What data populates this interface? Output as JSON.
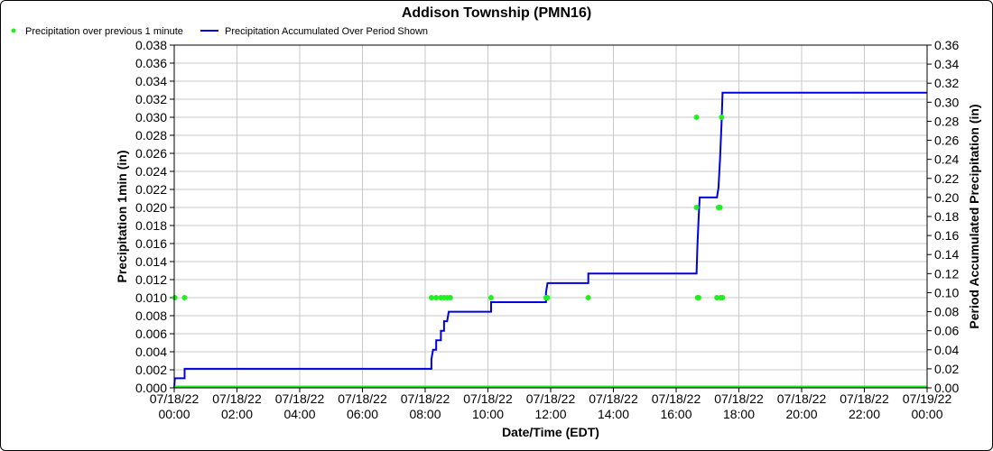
{
  "chart_data": {
    "type": "line",
    "title": "Addison Township (PMN16)",
    "xlabel": "Date/Time (EDT)",
    "ylabel": "Precipitation 1min (in)",
    "y2label": "Period Accumulated Precipitation (in)",
    "x_ticks": [
      [
        "07/18/22",
        "00:00"
      ],
      [
        "07/18/22",
        "02:00"
      ],
      [
        "07/18/22",
        "04:00"
      ],
      [
        "07/18/22",
        "06:00"
      ],
      [
        "07/18/22",
        "08:00"
      ],
      [
        "07/18/22",
        "10:00"
      ],
      [
        "07/18/22",
        "12:00"
      ],
      [
        "07/18/22",
        "14:00"
      ],
      [
        "07/18/22",
        "16:00"
      ],
      [
        "07/18/22",
        "18:00"
      ],
      [
        "07/18/22",
        "20:00"
      ],
      [
        "07/18/22",
        "22:00"
      ],
      [
        "07/19/22",
        "00:00"
      ]
    ],
    "x_range_hours": [
      0,
      24
    ],
    "y_ticks": [
      "0.000",
      "0.002",
      "0.004",
      "0.006",
      "0.008",
      "0.010",
      "0.012",
      "0.014",
      "0.016",
      "0.018",
      "0.020",
      "0.022",
      "0.024",
      "0.026",
      "0.028",
      "0.030",
      "0.032",
      "0.034",
      "0.036",
      "0.038"
    ],
    "y2_ticks": [
      "0.00",
      "0.02",
      "0.04",
      "0.06",
      "0.08",
      "0.10",
      "0.12",
      "0.14",
      "0.16",
      "0.18",
      "0.20",
      "0.22",
      "0.24",
      "0.26",
      "0.28",
      "0.30",
      "0.32",
      "0.34",
      "0.36"
    ],
    "ylim": [
      0,
      0.038
    ],
    "y2lim": [
      0,
      0.36
    ],
    "grid": true,
    "legend_position": "top-left",
    "series": [
      {
        "name": "Precipitation over previous 1 minute",
        "type": "scatter",
        "axis": "left",
        "color": "#22ee22",
        "baseline_value": 0.0,
        "points": [
          [
            0.02,
            0.01
          ],
          [
            0.33,
            0.01
          ],
          [
            8.2,
            0.01
          ],
          [
            8.35,
            0.01
          ],
          [
            8.5,
            0.01
          ],
          [
            8.6,
            0.01
          ],
          [
            8.7,
            0.01
          ],
          [
            8.8,
            0.01
          ],
          [
            10.1,
            0.01
          ],
          [
            11.85,
            0.01
          ],
          [
            11.9,
            0.01
          ],
          [
            13.2,
            0.01
          ],
          [
            16.65,
            0.03
          ],
          [
            16.65,
            0.02
          ],
          [
            16.68,
            0.01
          ],
          [
            16.72,
            0.01
          ],
          [
            17.3,
            0.01
          ],
          [
            17.35,
            0.02
          ],
          [
            17.4,
            0.02
          ],
          [
            17.42,
            0.01
          ],
          [
            17.45,
            0.03
          ],
          [
            17.48,
            0.01
          ]
        ]
      },
      {
        "name": "Precipitation Accumulated Over Period Shown",
        "type": "line",
        "axis": "right",
        "color": "#0000dd",
        "points": [
          [
            0.0,
            0.0
          ],
          [
            0.02,
            0.01
          ],
          [
            0.33,
            0.01
          ],
          [
            0.33,
            0.02
          ],
          [
            8.2,
            0.02
          ],
          [
            8.2,
            0.03
          ],
          [
            8.25,
            0.04
          ],
          [
            8.35,
            0.04
          ],
          [
            8.35,
            0.05
          ],
          [
            8.5,
            0.05
          ],
          [
            8.5,
            0.06
          ],
          [
            8.6,
            0.06
          ],
          [
            8.6,
            0.07
          ],
          [
            8.7,
            0.07
          ],
          [
            8.75,
            0.08
          ],
          [
            10.1,
            0.08
          ],
          [
            10.1,
            0.09
          ],
          [
            11.85,
            0.09
          ],
          [
            11.85,
            0.1
          ],
          [
            11.9,
            0.11
          ],
          [
            13.2,
            0.11
          ],
          [
            13.2,
            0.12
          ],
          [
            16.65,
            0.12
          ],
          [
            16.68,
            0.15
          ],
          [
            16.72,
            0.18
          ],
          [
            16.75,
            0.2
          ],
          [
            17.3,
            0.2
          ],
          [
            17.35,
            0.21
          ],
          [
            17.4,
            0.24
          ],
          [
            17.45,
            0.28
          ],
          [
            17.48,
            0.31
          ],
          [
            24.0,
            0.31
          ]
        ]
      }
    ]
  }
}
